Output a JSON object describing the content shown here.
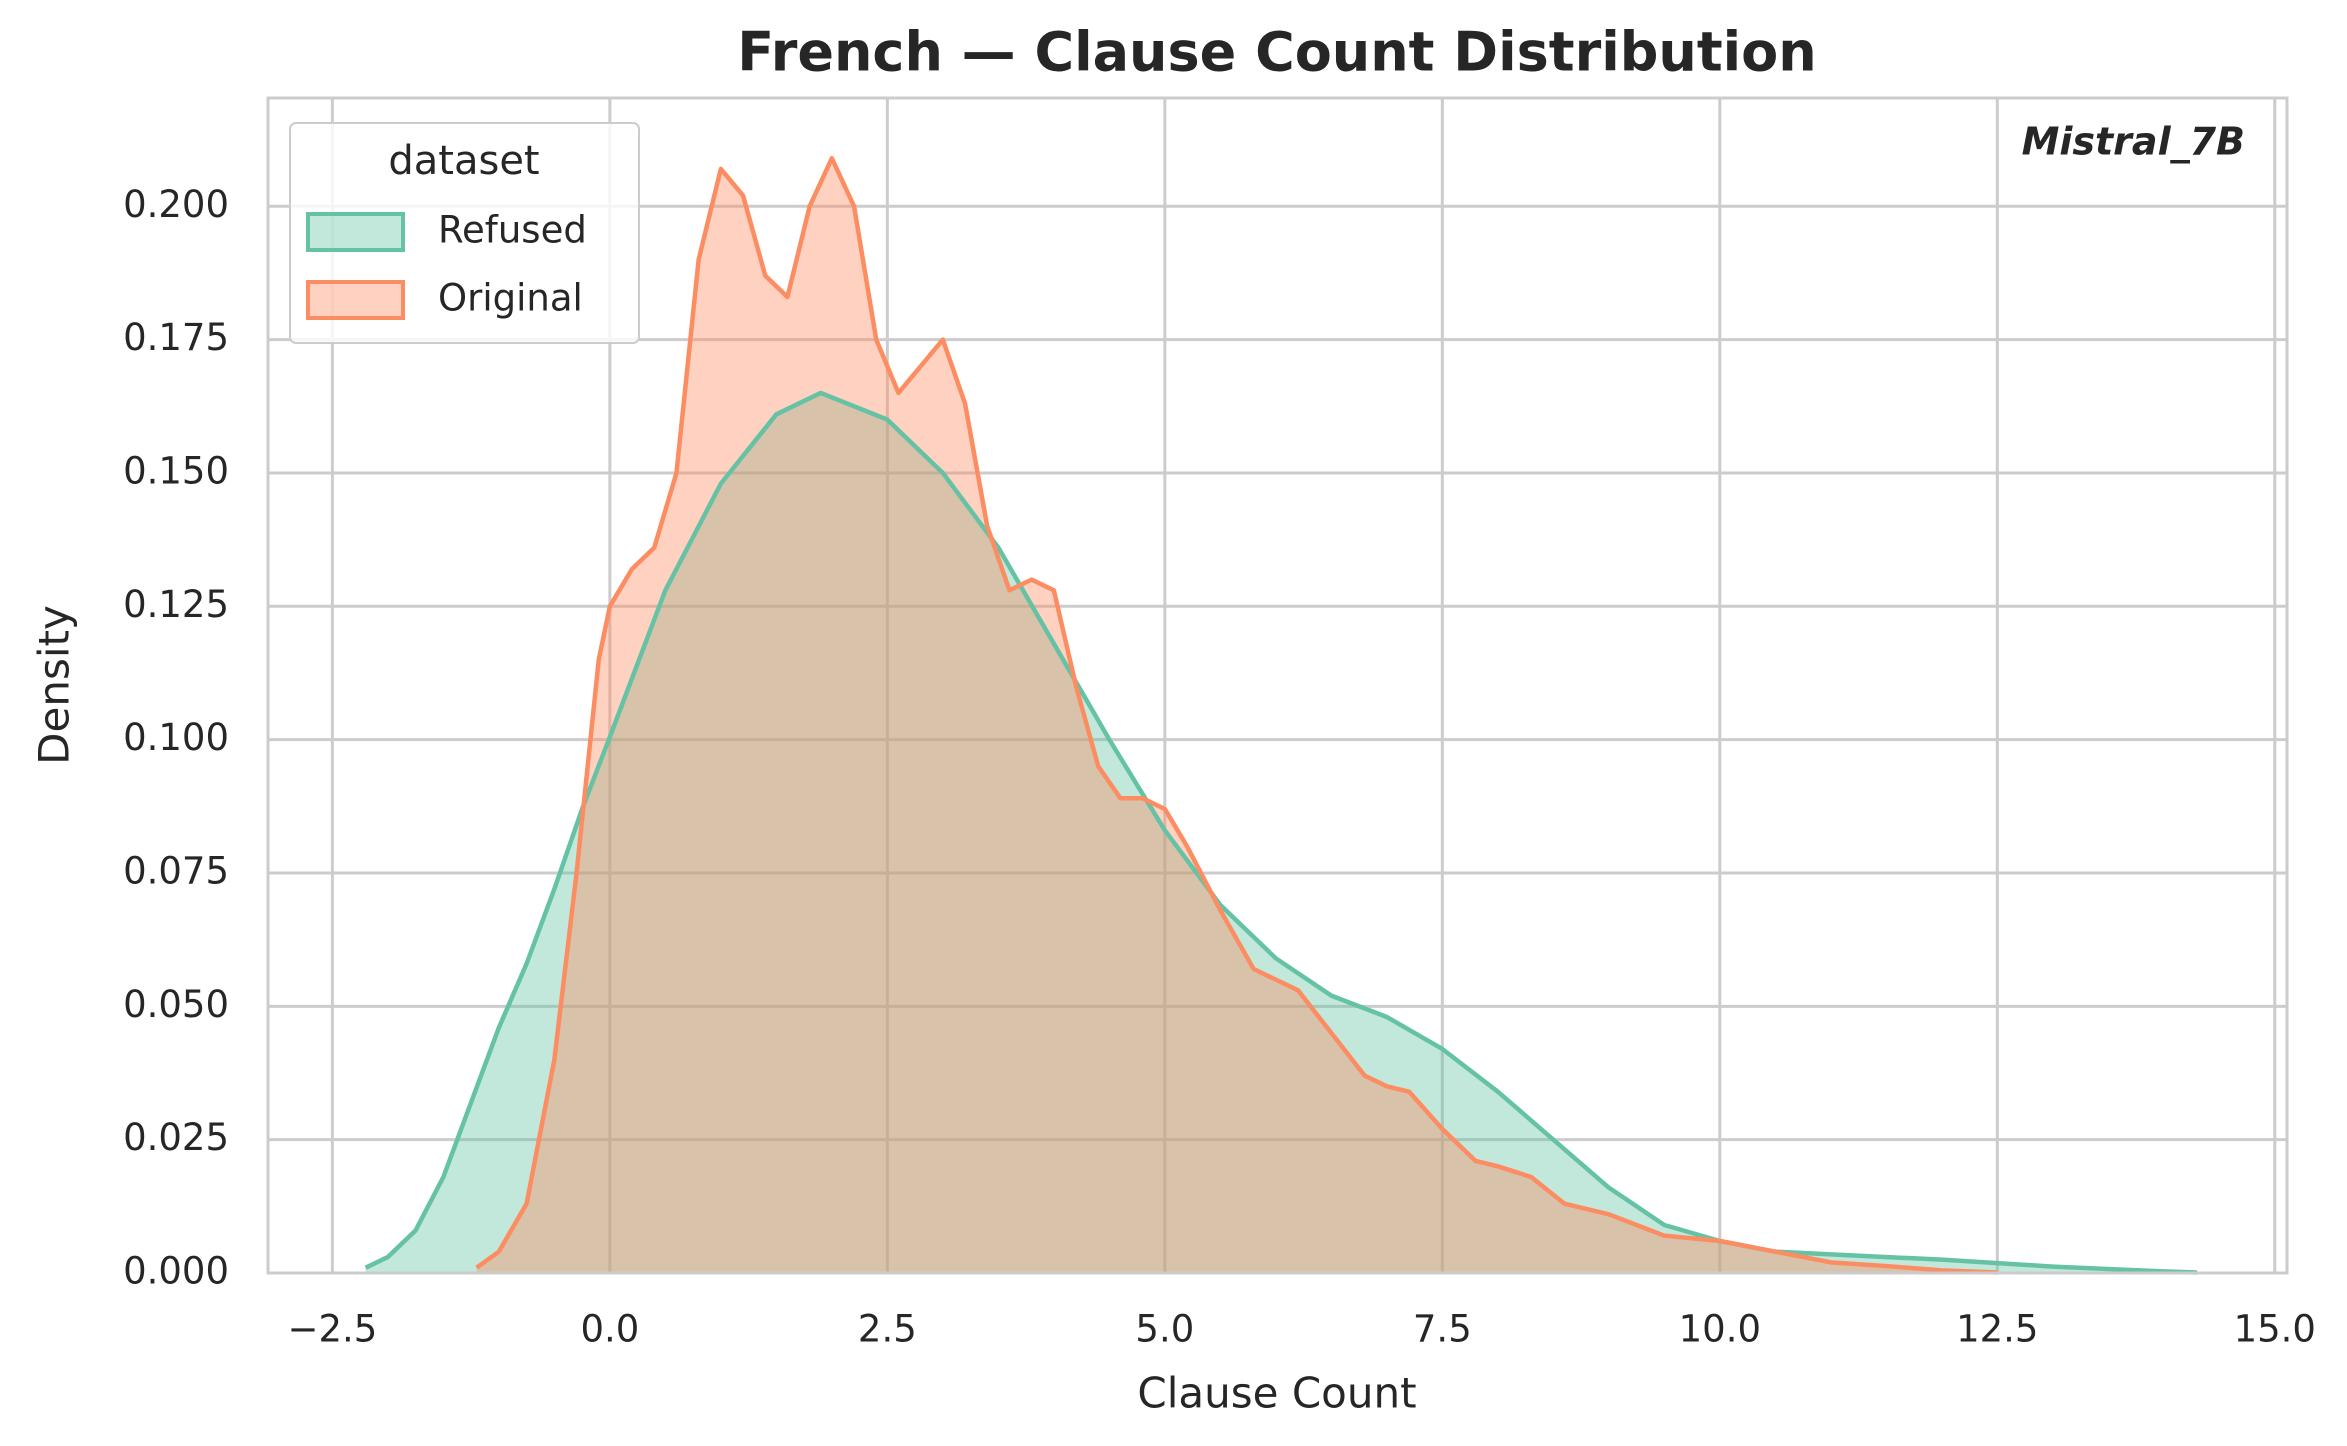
{
  "chart_data": {
    "type": "kde",
    "title": "French — Clause Count Distribution",
    "annotation": "Mistral_7B",
    "x_label": "Clause Count",
    "y_label": "Density",
    "legend_title": "dataset",
    "legend_position": "upper left",
    "grid": true,
    "xlim": [
      -3.08,
      15.11
    ],
    "ylim": [
      0,
      0.2203
    ],
    "xticks": [
      {
        "value": -2.5,
        "label": "−2.5"
      },
      {
        "value": 0,
        "label": "0.0"
      },
      {
        "value": 2.5,
        "label": "2.5"
      },
      {
        "value": 5,
        "label": "5.0"
      },
      {
        "value": 7.5,
        "label": "7.5"
      },
      {
        "value": 10,
        "label": "10.0"
      },
      {
        "value": 12.5,
        "label": "12.5"
      },
      {
        "value": 15,
        "label": "15.0"
      }
    ],
    "yticks": [
      {
        "value": 0,
        "label": "0.000"
      },
      {
        "value": 0.025,
        "label": "0.025"
      },
      {
        "value": 0.05,
        "label": "0.050"
      },
      {
        "value": 0.075,
        "label": "0.075"
      },
      {
        "value": 0.1,
        "label": "0.100"
      },
      {
        "value": 0.125,
        "label": "0.125"
      },
      {
        "value": 0.15,
        "label": "0.150"
      },
      {
        "value": 0.175,
        "label": "0.175"
      },
      {
        "value": 0.2,
        "label": "0.200"
      }
    ],
    "series": [
      {
        "name": "Refused",
        "color": "#66c2a5",
        "x": [
          -2.2,
          -2.0,
          -1.75,
          -1.5,
          -1.25,
          -1.0,
          -0.75,
          -0.5,
          -0.25,
          0,
          0.5,
          1.0,
          1.5,
          1.9,
          2.5,
          3.0,
          3.5,
          4.0,
          4.5,
          5.0,
          5.5,
          6.0,
          6.5,
          7.0,
          7.5,
          8.0,
          8.5,
          9.0,
          9.5,
          10.0,
          10.5,
          11.0,
          12.0,
          13.0,
          14.0,
          14.3
        ],
        "values": [
          0.001,
          0.003,
          0.008,
          0.018,
          0.032,
          0.046,
          0.058,
          0.072,
          0.087,
          0.1005,
          0.128,
          0.148,
          0.161,
          0.165,
          0.16,
          0.15,
          0.136,
          0.118,
          0.1,
          0.083,
          0.069,
          0.059,
          0.052,
          0.048,
          0.042,
          0.034,
          0.025,
          0.016,
          0.009,
          0.006,
          0.004,
          0.0035,
          0.0025,
          0.0012,
          0.0003,
          0.0001
        ]
      },
      {
        "name": "Original",
        "color": "#fc8d62",
        "x": [
          -1.2,
          -1.0,
          -0.75,
          -0.5,
          -0.3,
          -0.1,
          0,
          0.2,
          0.4,
          0.6,
          0.8,
          1.0,
          1.2,
          1.4,
          1.6,
          1.8,
          2.0,
          2.2,
          2.4,
          2.6,
          2.8,
          3.0,
          3.2,
          3.4,
          3.6,
          3.8,
          4.0,
          4.2,
          4.4,
          4.6,
          4.8,
          5.0,
          5.2,
          5.5,
          5.8,
          6.0,
          6.2,
          6.5,
          6.8,
          7.0,
          7.2,
          7.5,
          7.8,
          8.0,
          8.3,
          8.6,
          9.0,
          9.5,
          10.0,
          10.5,
          11.0,
          11.5,
          12.0,
          12.5
        ],
        "values": [
          0.001,
          0.004,
          0.013,
          0.04,
          0.075,
          0.115,
          0.125,
          0.132,
          0.136,
          0.15,
          0.19,
          0.207,
          0.202,
          0.187,
          0.183,
          0.2,
          0.209,
          0.2,
          0.175,
          0.165,
          0.17,
          0.175,
          0.163,
          0.14,
          0.128,
          0.13,
          0.128,
          0.11,
          0.095,
          0.089,
          0.089,
          0.087,
          0.08,
          0.068,
          0.057,
          0.055,
          0.053,
          0.045,
          0.037,
          0.035,
          0.034,
          0.027,
          0.021,
          0.02,
          0.018,
          0.013,
          0.011,
          0.007,
          0.006,
          0.004,
          0.002,
          0.0013,
          0.0005,
          0.0001
        ]
      }
    ]
  }
}
